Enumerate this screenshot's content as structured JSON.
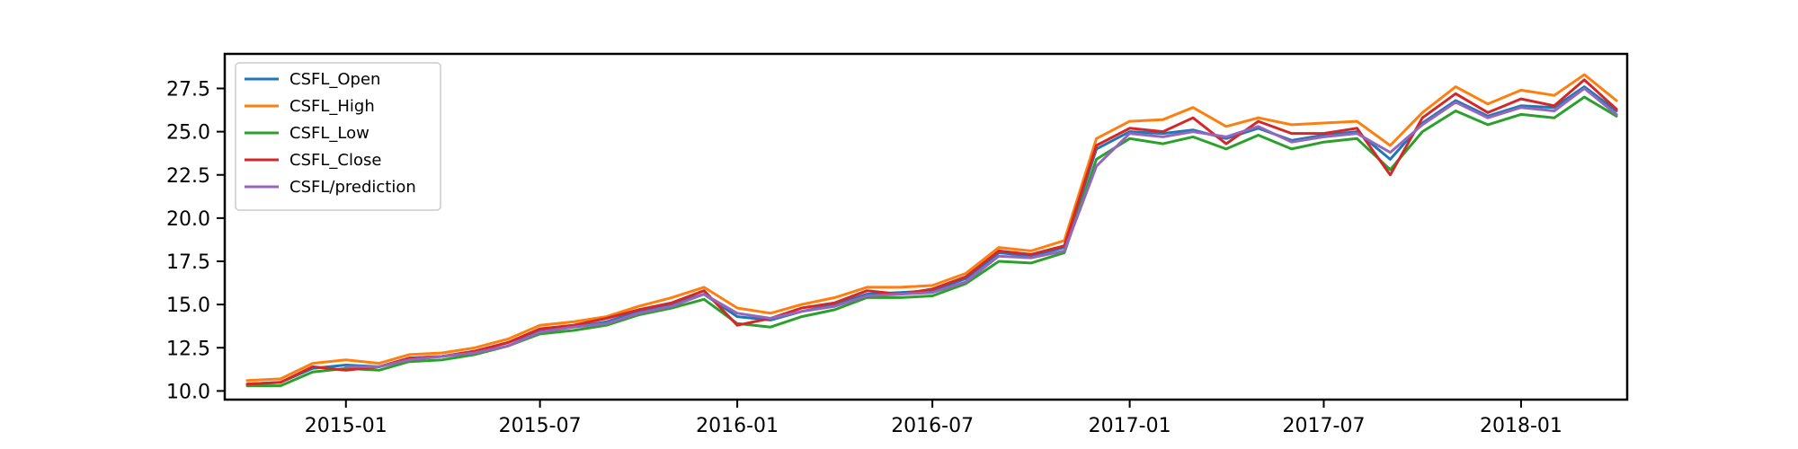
{
  "chart_data": {
    "type": "line",
    "title": "",
    "xlabel": "",
    "ylabel": "",
    "x_range": [
      "2014-09-10",
      "2018-04-10"
    ],
    "ylim": [
      9.5,
      29.5
    ],
    "grid": false,
    "legend_position": "top-left",
    "x_ticks": [
      {
        "date": "2015-01-01",
        "label": "2015-01"
      },
      {
        "date": "2015-07-01",
        "label": "2015-07"
      },
      {
        "date": "2016-01-01",
        "label": "2016-01"
      },
      {
        "date": "2016-07-01",
        "label": "2016-07"
      },
      {
        "date": "2017-01-01",
        "label": "2017-01"
      },
      {
        "date": "2017-07-01",
        "label": "2017-07"
      },
      {
        "date": "2018-01-01",
        "label": "2018-01"
      }
    ],
    "y_ticks": [
      {
        "value": 10.0,
        "label": "10.0"
      },
      {
        "value": 12.5,
        "label": "12.5"
      },
      {
        "value": 15.0,
        "label": "15.0"
      },
      {
        "value": 17.5,
        "label": "17.5"
      },
      {
        "value": 20.0,
        "label": "20.0"
      },
      {
        "value": 22.5,
        "label": "22.5"
      },
      {
        "value": 25.0,
        "label": "25.0"
      },
      {
        "value": 27.5,
        "label": "27.5"
      }
    ],
    "dates": [
      "2014-10-01",
      "2014-11-01",
      "2014-12-01",
      "2015-01-01",
      "2015-02-01",
      "2015-03-01",
      "2015-04-01",
      "2015-05-01",
      "2015-06-01",
      "2015-07-01",
      "2015-08-01",
      "2015-09-01",
      "2015-10-01",
      "2015-11-01",
      "2015-12-01",
      "2016-01-01",
      "2016-02-01",
      "2016-03-01",
      "2016-04-01",
      "2016-05-01",
      "2016-06-01",
      "2016-07-01",
      "2016-08-01",
      "2016-09-01",
      "2016-10-01",
      "2016-11-01",
      "2016-12-01",
      "2017-01-01",
      "2017-02-01",
      "2017-03-01",
      "2017-04-01",
      "2017-05-01",
      "2017-06-01",
      "2017-07-01",
      "2017-08-01",
      "2017-09-01",
      "2017-10-01",
      "2017-11-01",
      "2017-12-01",
      "2018-01-01",
      "2018-02-01",
      "2018-03-01",
      "2018-03-31"
    ],
    "series": [
      {
        "name": "CSFL_Open",
        "color": "#1f77b4",
        "values": [
          10.4,
          10.5,
          11.3,
          11.5,
          11.4,
          11.9,
          12.0,
          12.3,
          12.8,
          13.5,
          13.7,
          14.0,
          14.6,
          15.0,
          15.6,
          14.3,
          14.1,
          14.6,
          15.0,
          15.6,
          15.7,
          15.8,
          16.5,
          18.0,
          17.8,
          18.3,
          24.0,
          25.0,
          24.9,
          25.1,
          24.6,
          25.2,
          24.5,
          24.8,
          25.0,
          23.4,
          25.5,
          26.8,
          25.9,
          26.5,
          26.4,
          27.6,
          26.2
        ]
      },
      {
        "name": "CSFL_High",
        "color": "#ff7f0e",
        "values": [
          10.6,
          10.7,
          11.6,
          11.8,
          11.6,
          12.1,
          12.2,
          12.5,
          13.0,
          13.8,
          14.0,
          14.3,
          14.9,
          15.4,
          16.0,
          14.8,
          14.5,
          15.0,
          15.4,
          16.0,
          16.0,
          16.1,
          16.8,
          18.3,
          18.1,
          18.7,
          24.6,
          25.6,
          25.7,
          26.4,
          25.3,
          25.8,
          25.4,
          25.5,
          25.6,
          24.2,
          26.1,
          27.6,
          26.6,
          27.4,
          27.1,
          28.3,
          26.8
        ]
      },
      {
        "name": "CSFL_Low",
        "color": "#2ca02c",
        "values": [
          10.3,
          10.3,
          11.1,
          11.3,
          11.2,
          11.7,
          11.8,
          12.1,
          12.6,
          13.3,
          13.5,
          13.8,
          14.4,
          14.8,
          15.3,
          13.9,
          13.7,
          14.3,
          14.7,
          15.4,
          15.4,
          15.5,
          16.2,
          17.5,
          17.4,
          18.0,
          23.4,
          24.6,
          24.3,
          24.7,
          24.0,
          24.8,
          24.0,
          24.4,
          24.6,
          22.8,
          25.0,
          26.2,
          25.4,
          26.0,
          25.8,
          27.0,
          25.9
        ]
      },
      {
        "name": "CSFL_Close",
        "color": "#d62728",
        "values": [
          10.4,
          10.5,
          11.4,
          11.2,
          11.4,
          11.9,
          12.0,
          12.3,
          12.8,
          13.6,
          13.8,
          14.2,
          14.7,
          15.1,
          15.8,
          13.8,
          14.2,
          14.8,
          15.1,
          15.8,
          15.6,
          15.9,
          16.6,
          18.1,
          17.9,
          18.4,
          24.2,
          25.2,
          25.0,
          25.8,
          24.3,
          25.6,
          24.9,
          24.9,
          25.2,
          22.5,
          25.8,
          27.2,
          26.1,
          26.9,
          26.5,
          28.0,
          26.3
        ]
      },
      {
        "name": "CSFL/prediction",
        "color": "#9467bd",
        "values": [
          null,
          null,
          null,
          11.4,
          11.4,
          11.8,
          12.0,
          12.2,
          12.6,
          13.4,
          13.7,
          13.9,
          14.5,
          14.9,
          15.6,
          14.5,
          14.2,
          14.6,
          14.9,
          15.5,
          15.6,
          15.7,
          16.3,
          17.8,
          17.7,
          18.1,
          23.0,
          24.9,
          24.7,
          25.0,
          24.7,
          25.3,
          24.4,
          24.7,
          24.9,
          23.8,
          25.4,
          26.7,
          25.8,
          26.4,
          26.2,
          27.5,
          26.0
        ]
      }
    ]
  }
}
